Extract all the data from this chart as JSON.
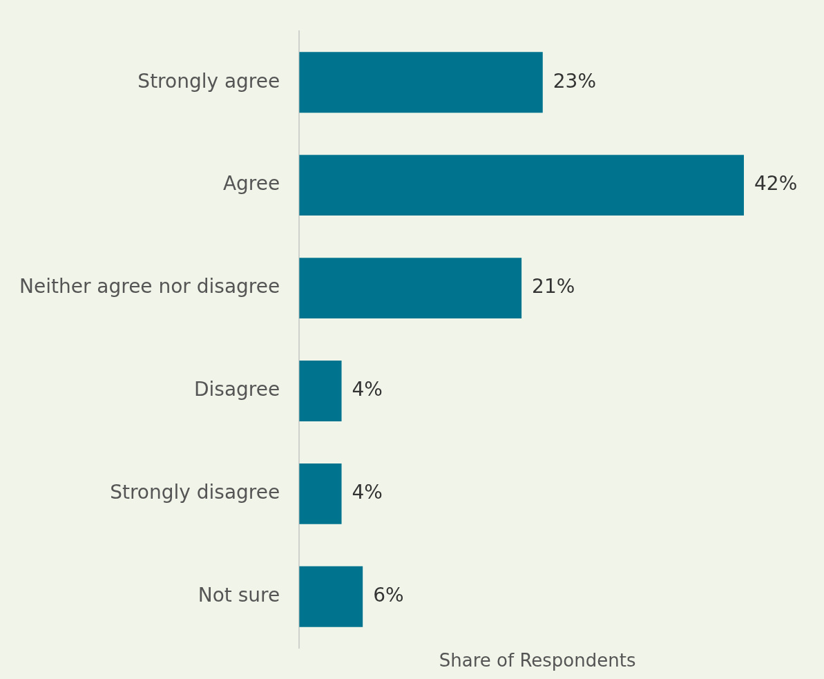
{
  "chart_data": {
    "type": "bar",
    "orientation": "horizontal",
    "xlabel": "Share of Respondents",
    "categories": [
      "Strongly agree",
      "Agree",
      "Neither agree nor disagree",
      "Disagree",
      "Strongly disagree",
      "Not sure"
    ],
    "values": [
      23,
      42,
      21,
      4,
      4,
      6
    ],
    "value_labels": [
      "23%",
      "42%",
      "21%",
      "4%",
      "4%",
      "6%"
    ],
    "color": "#00748e",
    "tick_labels": "y",
    "grid": false,
    "legend": false
  }
}
